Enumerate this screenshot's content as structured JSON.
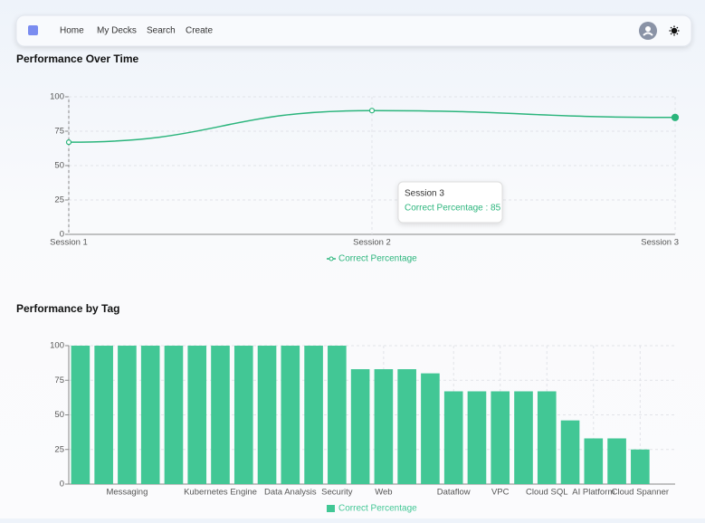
{
  "nav": {
    "links": [
      "Home",
      "My Decks",
      "Search",
      "Create"
    ]
  },
  "chart_data": [
    {
      "type": "line",
      "title": "Performance Over Time",
      "categories": [
        "Session 1",
        "Session 2",
        "Session 3"
      ],
      "series": [
        {
          "name": "Correct Percentage",
          "color": "#2bb57c",
          "values": [
            67,
            90,
            85
          ]
        }
      ],
      "ylim": [
        0,
        100
      ],
      "yticks": [
        0,
        25,
        50,
        75,
        100
      ],
      "grid": true,
      "legend": "bottom",
      "tooltip": {
        "title": "Session 3",
        "text": "Correct Percentage : 85"
      }
    },
    {
      "type": "bar",
      "title": "Performance by Tag",
      "categories": [
        null,
        null,
        "Messaging",
        null,
        null,
        null,
        "Kubernetes Engine",
        null,
        null,
        "Data Analysis",
        null,
        "Security",
        null,
        "Web",
        null,
        null,
        "Dataflow",
        null,
        "VPC",
        null,
        "Cloud SQL",
        null,
        "AI Platform",
        null,
        "Cloud Spanner",
        null
      ],
      "series": [
        {
          "name": "Correct Percentage",
          "color": "#42c795",
          "values": [
            100,
            100,
            100,
            100,
            100,
            100,
            100,
            100,
            100,
            100,
            100,
            100,
            83,
            83,
            83,
            80,
            67,
            67,
            67,
            67,
            67,
            46,
            33,
            33,
            25,
            0
          ]
        }
      ],
      "ylim": [
        0,
        100
      ],
      "yticks": [
        0,
        25,
        50,
        75,
        100
      ],
      "grid": true,
      "legend": "bottom"
    }
  ]
}
